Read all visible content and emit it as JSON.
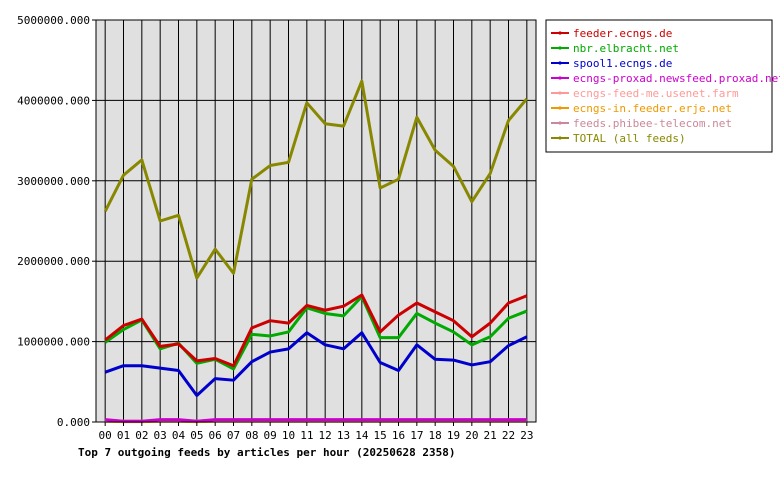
{
  "chart_data": {
    "type": "line",
    "title": "Top 7 outgoing feeds by articles per hour (20250628 2358)",
    "xlabel": "",
    "ylabel": "",
    "categories": [
      "00",
      "01",
      "02",
      "03",
      "04",
      "05",
      "06",
      "07",
      "08",
      "09",
      "10",
      "11",
      "12",
      "13",
      "14",
      "15",
      "16",
      "17",
      "18",
      "19",
      "20",
      "21",
      "22",
      "23"
    ],
    "y_ticks": [
      "0.000",
      "1000000.000",
      "2000000.000",
      "3000000.000",
      "4000000.000",
      "5000000.000"
    ],
    "ylim": [
      0,
      5000000
    ],
    "grid": true,
    "legend_position": "right",
    "series": [
      {
        "name": "feeder.ecngs.de",
        "color": "#cc0000",
        "values": [
          1020000,
          1200000,
          1280000,
          940000,
          970000,
          760000,
          790000,
          700000,
          1170000,
          1260000,
          1230000,
          1450000,
          1390000,
          1440000,
          1580000,
          1120000,
          1330000,
          1480000,
          1370000,
          1260000,
          1060000,
          1230000,
          1480000,
          1570000
        ]
      },
      {
        "name": "nbr.elbracht.net",
        "color": "#00aa00",
        "values": [
          990000,
          1150000,
          1270000,
          910000,
          980000,
          730000,
          780000,
          660000,
          1090000,
          1070000,
          1120000,
          1420000,
          1350000,
          1320000,
          1560000,
          1050000,
          1050000,
          1350000,
          1230000,
          1120000,
          960000,
          1060000,
          1290000,
          1380000
        ]
      },
      {
        "name": "spool1.ecngs.de",
        "color": "#0000cc",
        "values": [
          620000,
          700000,
          700000,
          670000,
          640000,
          330000,
          540000,
          520000,
          750000,
          870000,
          910000,
          1110000,
          960000,
          910000,
          1110000,
          740000,
          640000,
          960000,
          780000,
          770000,
          710000,
          750000,
          950000,
          1060000
        ]
      },
      {
        "name": "ecngs-proxad.newsfeed.proxad.net",
        "color": "#cc00cc",
        "values": [
          30000,
          10000,
          10000,
          30000,
          30000,
          10000,
          30000,
          30000,
          30000,
          30000,
          30000,
          30000,
          30000,
          30000,
          30000,
          30000,
          30000,
          30000,
          30000,
          30000,
          30000,
          30000,
          30000,
          30000
        ]
      },
      {
        "name": "ecngs-feed-me.usenet.farm",
        "color": "#ff9999",
        "values": [
          20000,
          10000,
          10000,
          20000,
          20000,
          10000,
          20000,
          20000,
          20000,
          20000,
          20000,
          20000,
          20000,
          20000,
          20000,
          20000,
          20000,
          20000,
          20000,
          20000,
          20000,
          20000,
          20000,
          20000
        ]
      },
      {
        "name": "ecngs-in.feeder.erje.net",
        "color": "#ee9900",
        "values": [
          10000,
          5000,
          5000,
          10000,
          10000,
          5000,
          10000,
          10000,
          10000,
          10000,
          10000,
          10000,
          10000,
          10000,
          10000,
          10000,
          10000,
          10000,
          10000,
          10000,
          10000,
          10000,
          10000,
          10000
        ]
      },
      {
        "name": "feeds.phibee-telecom.net",
        "color": "#cc8899",
        "values": [
          20000,
          10000,
          10000,
          20000,
          20000,
          10000,
          20000,
          20000,
          20000,
          20000,
          20000,
          20000,
          20000,
          20000,
          20000,
          20000,
          20000,
          20000,
          20000,
          20000,
          20000,
          20000,
          20000,
          20000
        ]
      },
      {
        "name": "TOTAL (all feeds)",
        "color": "#888800",
        "values": [
          2620000,
          3070000,
          3260000,
          2500000,
          2570000,
          1790000,
          2150000,
          1850000,
          3020000,
          3190000,
          3230000,
          3970000,
          3710000,
          3680000,
          4240000,
          2910000,
          3020000,
          3790000,
          3380000,
          3180000,
          2740000,
          3090000,
          3750000,
          4020000
        ]
      }
    ]
  }
}
